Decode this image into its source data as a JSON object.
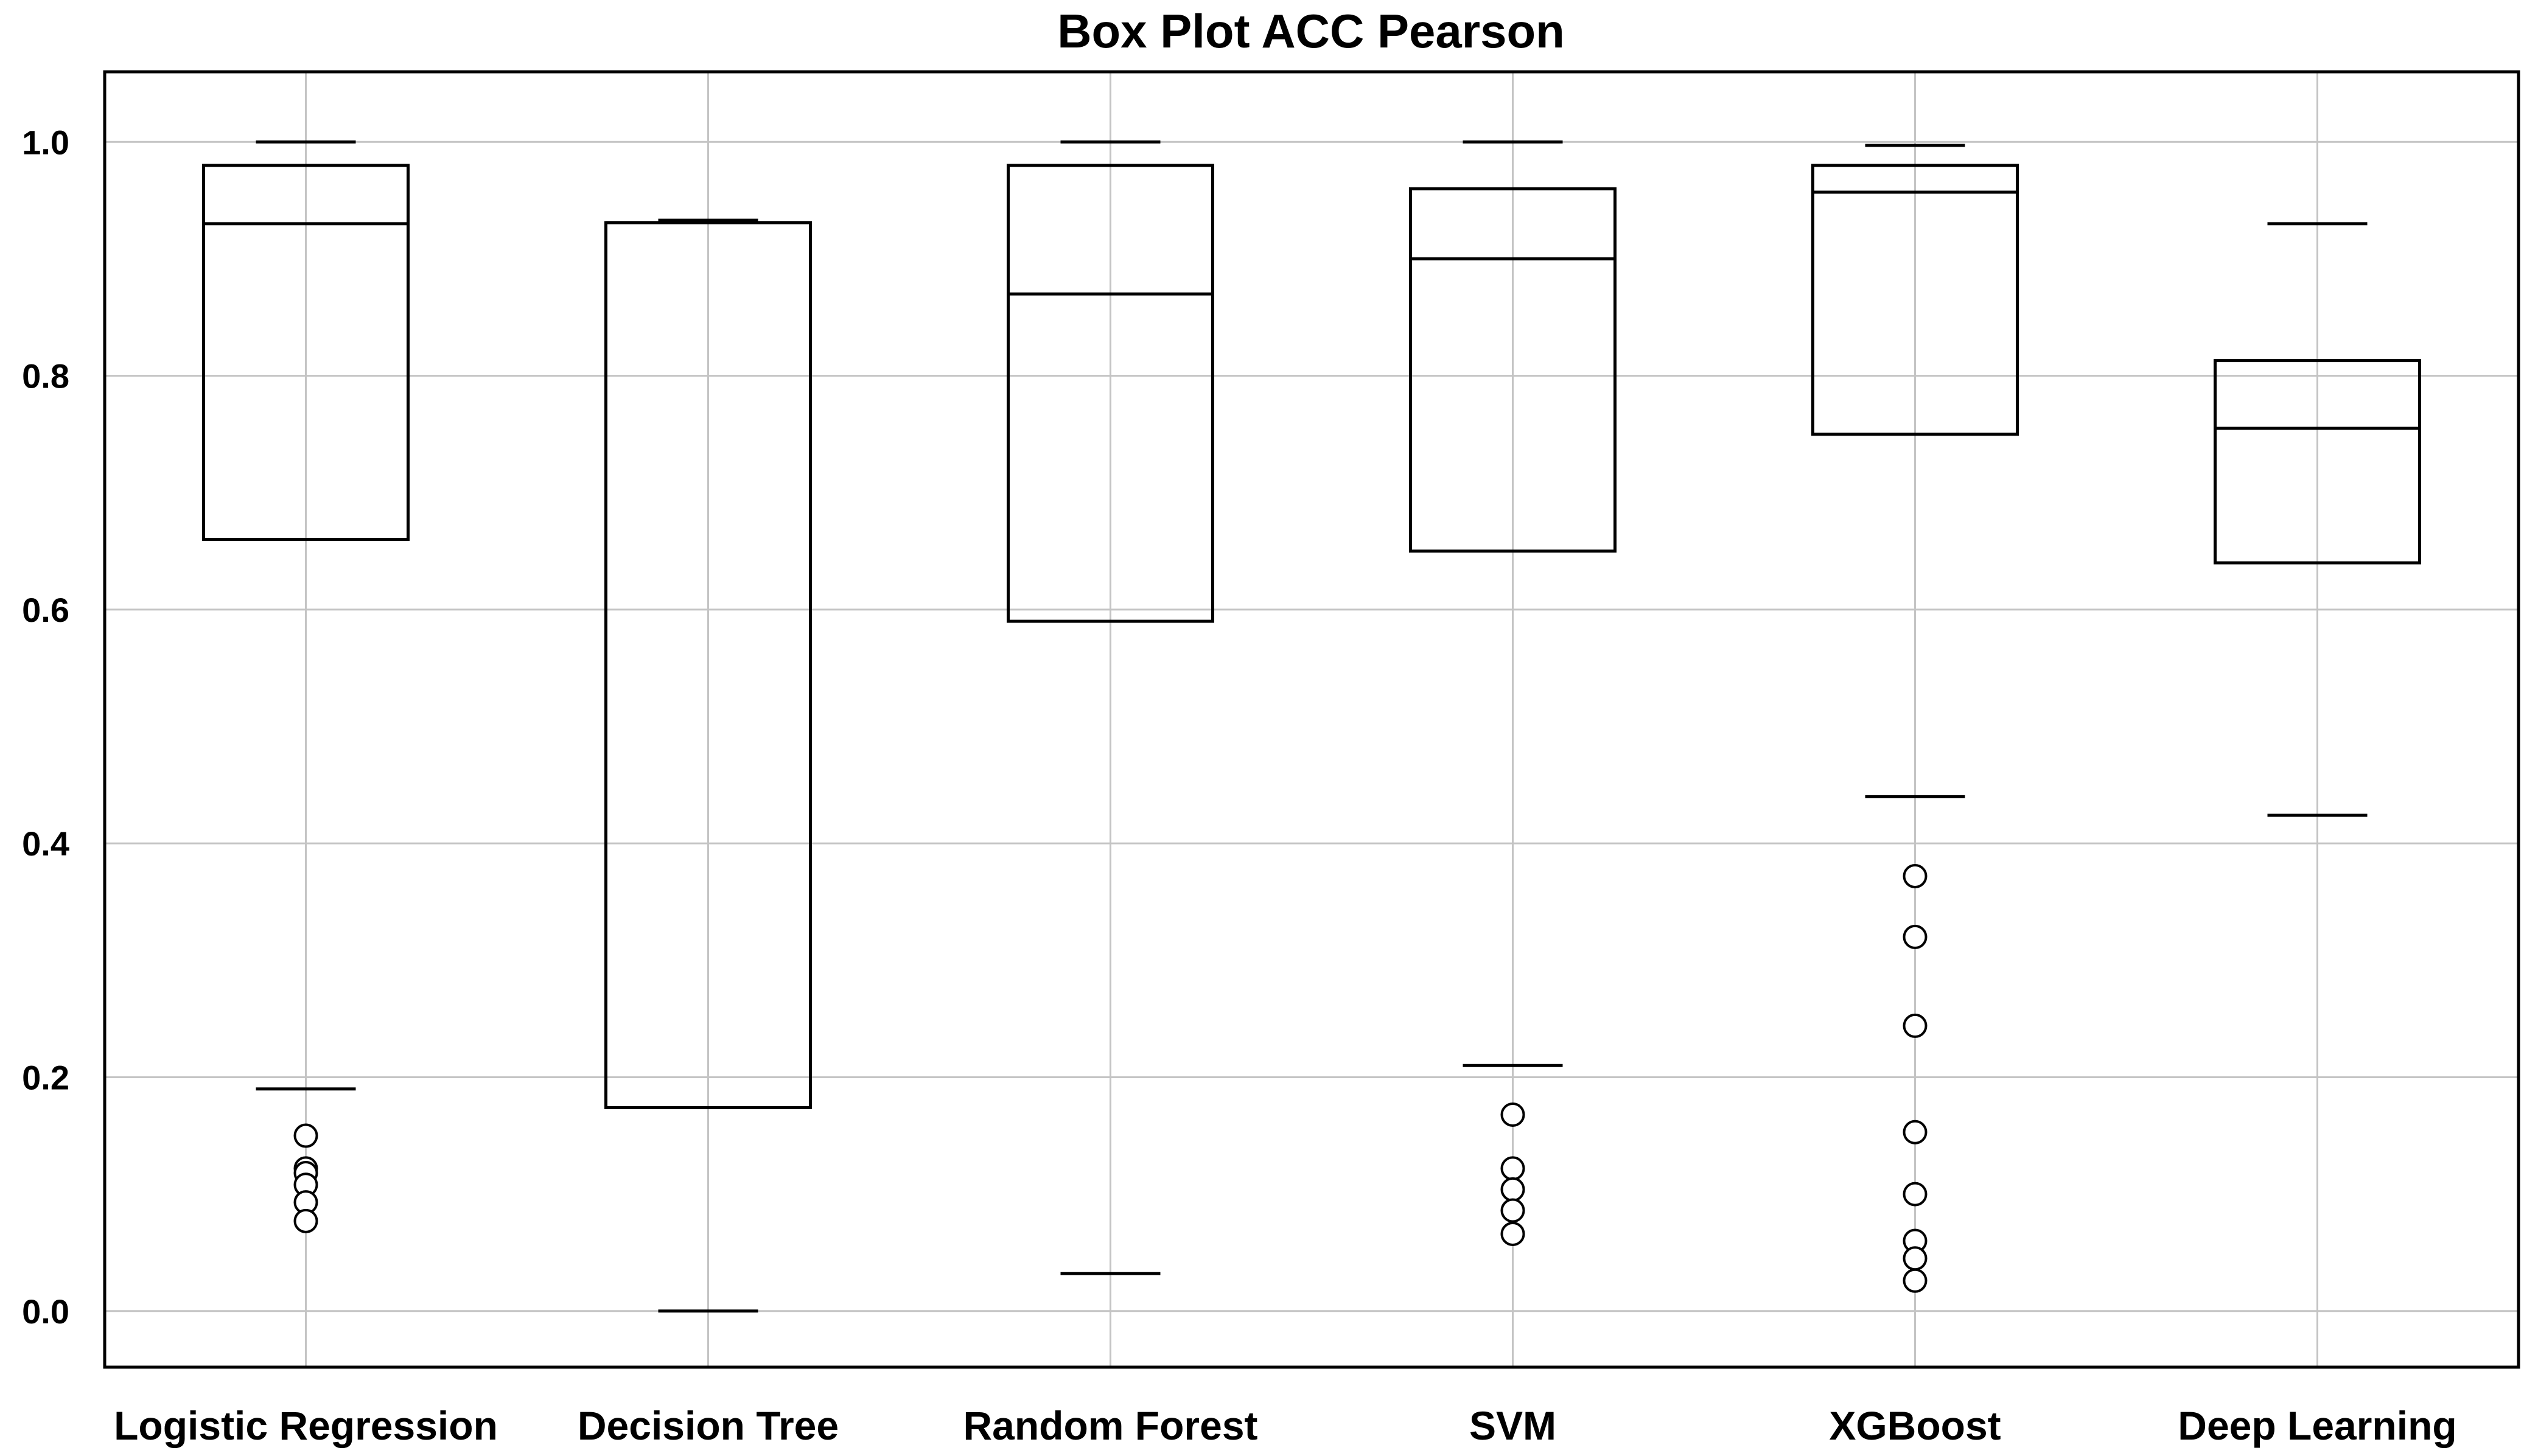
{
  "chart_data": {
    "type": "box",
    "title": "Box Plot ACC Pearson",
    "xlabel": "",
    "ylabel": "",
    "ylim": [
      -0.048,
      1.06
    ],
    "yticks": [
      0.0,
      0.2,
      0.4,
      0.6,
      0.8,
      1.0
    ],
    "ytick_labels": [
      "0.0",
      "0.2",
      "0.4",
      "0.6",
      "0.8",
      "1.0"
    ],
    "grid": true,
    "categories": [
      "Logistic Regression",
      "Decision Tree",
      "Random Forest",
      "SVM",
      "XGBoost",
      "Deep Learning"
    ],
    "boxes": [
      {
        "label": "Logistic Regression",
        "whisker_low": 0.19,
        "q1": 0.66,
        "median": 0.93,
        "q3": 0.98,
        "whisker_high": 1.0,
        "outliers": [
          0.15,
          0.122,
          0.118,
          0.108,
          0.093,
          0.077
        ]
      },
      {
        "label": "Decision Tree",
        "whisker_low": 0.0,
        "q1": 0.174,
        "median": 0.931,
        "q3": 0.931,
        "whisker_high": 0.933,
        "outliers": []
      },
      {
        "label": "Random Forest",
        "whisker_low": 0.032,
        "q1": 0.59,
        "median": 0.87,
        "q3": 0.98,
        "whisker_high": 1.0,
        "outliers": []
      },
      {
        "label": "SVM",
        "whisker_low": 0.21,
        "q1": 0.65,
        "median": 0.9,
        "q3": 0.96,
        "whisker_high": 1.0,
        "outliers": [
          0.168,
          0.122,
          0.104,
          0.086,
          0.066
        ]
      },
      {
        "label": "XGBoost",
        "whisker_low": 0.44,
        "q1": 0.75,
        "median": 0.957,
        "q3": 0.98,
        "whisker_high": 0.997,
        "outliers": [
          0.372,
          0.32,
          0.244,
          0.153,
          0.1,
          0.06,
          0.045,
          0.026
        ]
      },
      {
        "label": "Deep Learning",
        "whisker_low": 0.424,
        "q1": 0.64,
        "median": 0.755,
        "q3": 0.813,
        "whisker_high": 0.93,
        "outliers": []
      }
    ]
  }
}
